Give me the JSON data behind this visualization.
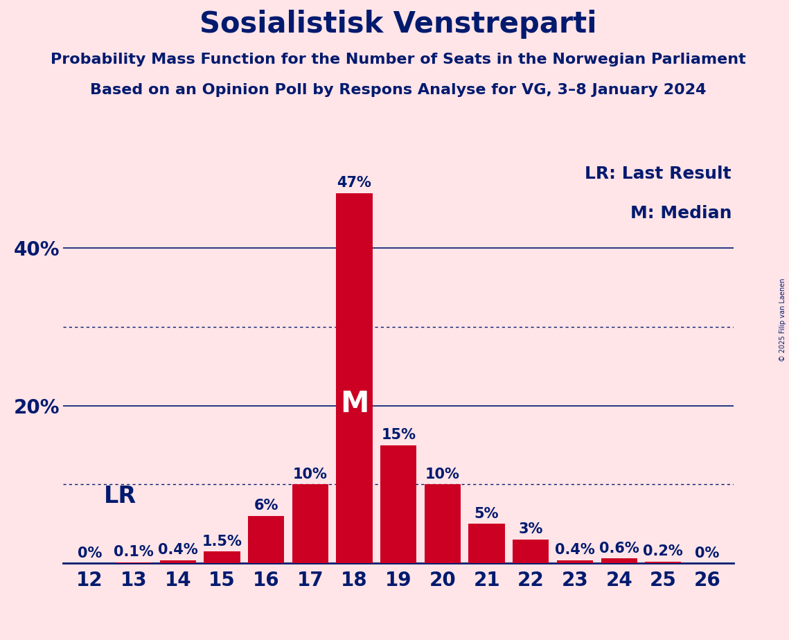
{
  "title": "Sosialistisk Venstreparti",
  "subtitle1": "Probability Mass Function for the Number of Seats in the Norwegian Parliament",
  "subtitle2": "Based on an Opinion Poll by Respons Analyse for VG, 3–8 January 2024",
  "copyright": "© 2025 Filip van Laenen",
  "legend_lr": "LR: Last Result",
  "legend_m": "M: Median",
  "seats": [
    12,
    13,
    14,
    15,
    16,
    17,
    18,
    19,
    20,
    21,
    22,
    23,
    24,
    25,
    26
  ],
  "probabilities": [
    0.0,
    0.1,
    0.4,
    1.5,
    6.0,
    10.0,
    47.0,
    15.0,
    10.0,
    5.0,
    3.0,
    0.4,
    0.6,
    0.2,
    0.0
  ],
  "bar_color": "#CC0022",
  "background_color": "#FFE4E8",
  "text_color": "#001A6E",
  "solid_gridlines": [
    20,
    40
  ],
  "dotted_gridlines": [
    10,
    30
  ],
  "lr_seat": 13,
  "median_seat": 18,
  "median_label": "M",
  "lr_label": "LR",
  "title_fontsize": 30,
  "subtitle_fontsize": 16,
  "bar_label_fontsize": 15,
  "axis_label_fontsize": 20,
  "legend_fontsize": 18,
  "lr_label_fontsize": 24,
  "median_fontsize": 30,
  "ytick_vals": [
    20,
    40
  ],
  "ytick_labels": [
    "20%",
    "40%"
  ],
  "ylim_max": 52,
  "xlim_min": 11.4,
  "xlim_max": 26.6
}
